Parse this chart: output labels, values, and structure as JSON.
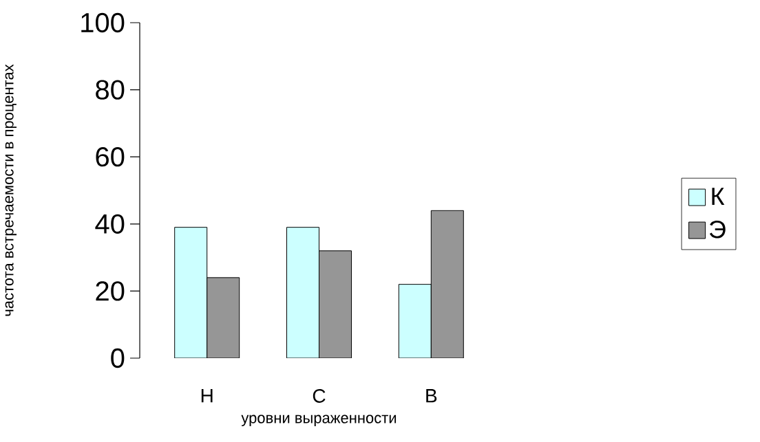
{
  "chart_data": {
    "type": "bar",
    "xlabel": "уровни выраженности",
    "ylabel": "частота встречаемости в процентах",
    "categories": [
      "Н",
      "С",
      "В"
    ],
    "series": [
      {
        "name": "К",
        "color": "#ccffff",
        "values": [
          39,
          39,
          22
        ]
      },
      {
        "name": "Э",
        "color": "#969696",
        "values": [
          24,
          32,
          44
        ]
      }
    ],
    "ylim": [
      0,
      100
    ],
    "yticks": [
      0,
      20,
      40,
      60,
      80,
      100
    ],
    "legend": "right"
  }
}
